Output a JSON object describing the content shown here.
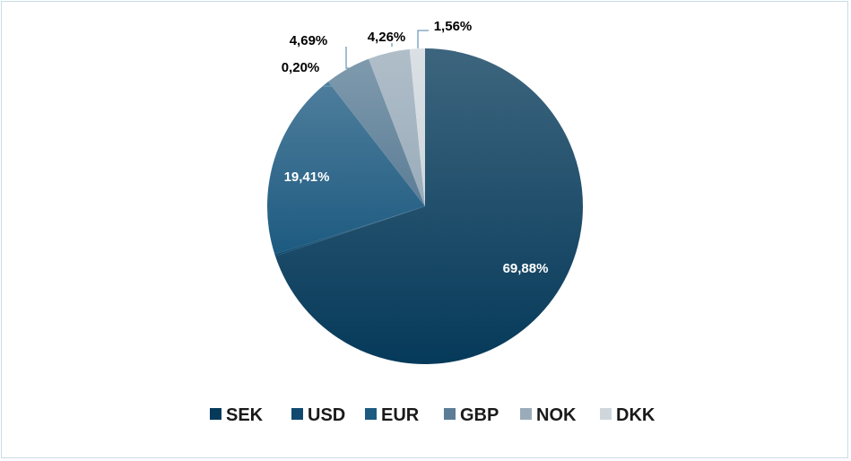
{
  "chart_data": {
    "type": "pie",
    "title": "",
    "legend_position": "bottom",
    "slices": [
      {
        "label": "SEK",
        "value": 69.88,
        "value_label": "69,88%",
        "color": "#063a5a"
      },
      {
        "label": "USD",
        "value": 0.2,
        "value_label": "0,20%",
        "color": "#0f4a6e"
      },
      {
        "label": "EUR",
        "value": 19.41,
        "value_label": "19,41%",
        "color": "#1d5a80"
      },
      {
        "label": "GBP",
        "value": 4.69,
        "value_label": "4,69%",
        "color": "#5b7d96"
      },
      {
        "label": "NOK",
        "value": 4.26,
        "value_label": "4,26%",
        "color": "#9aacba"
      },
      {
        "label": "DKK",
        "value": 1.56,
        "value_label": "1,56%",
        "color": "#cfd7dd"
      }
    ]
  }
}
